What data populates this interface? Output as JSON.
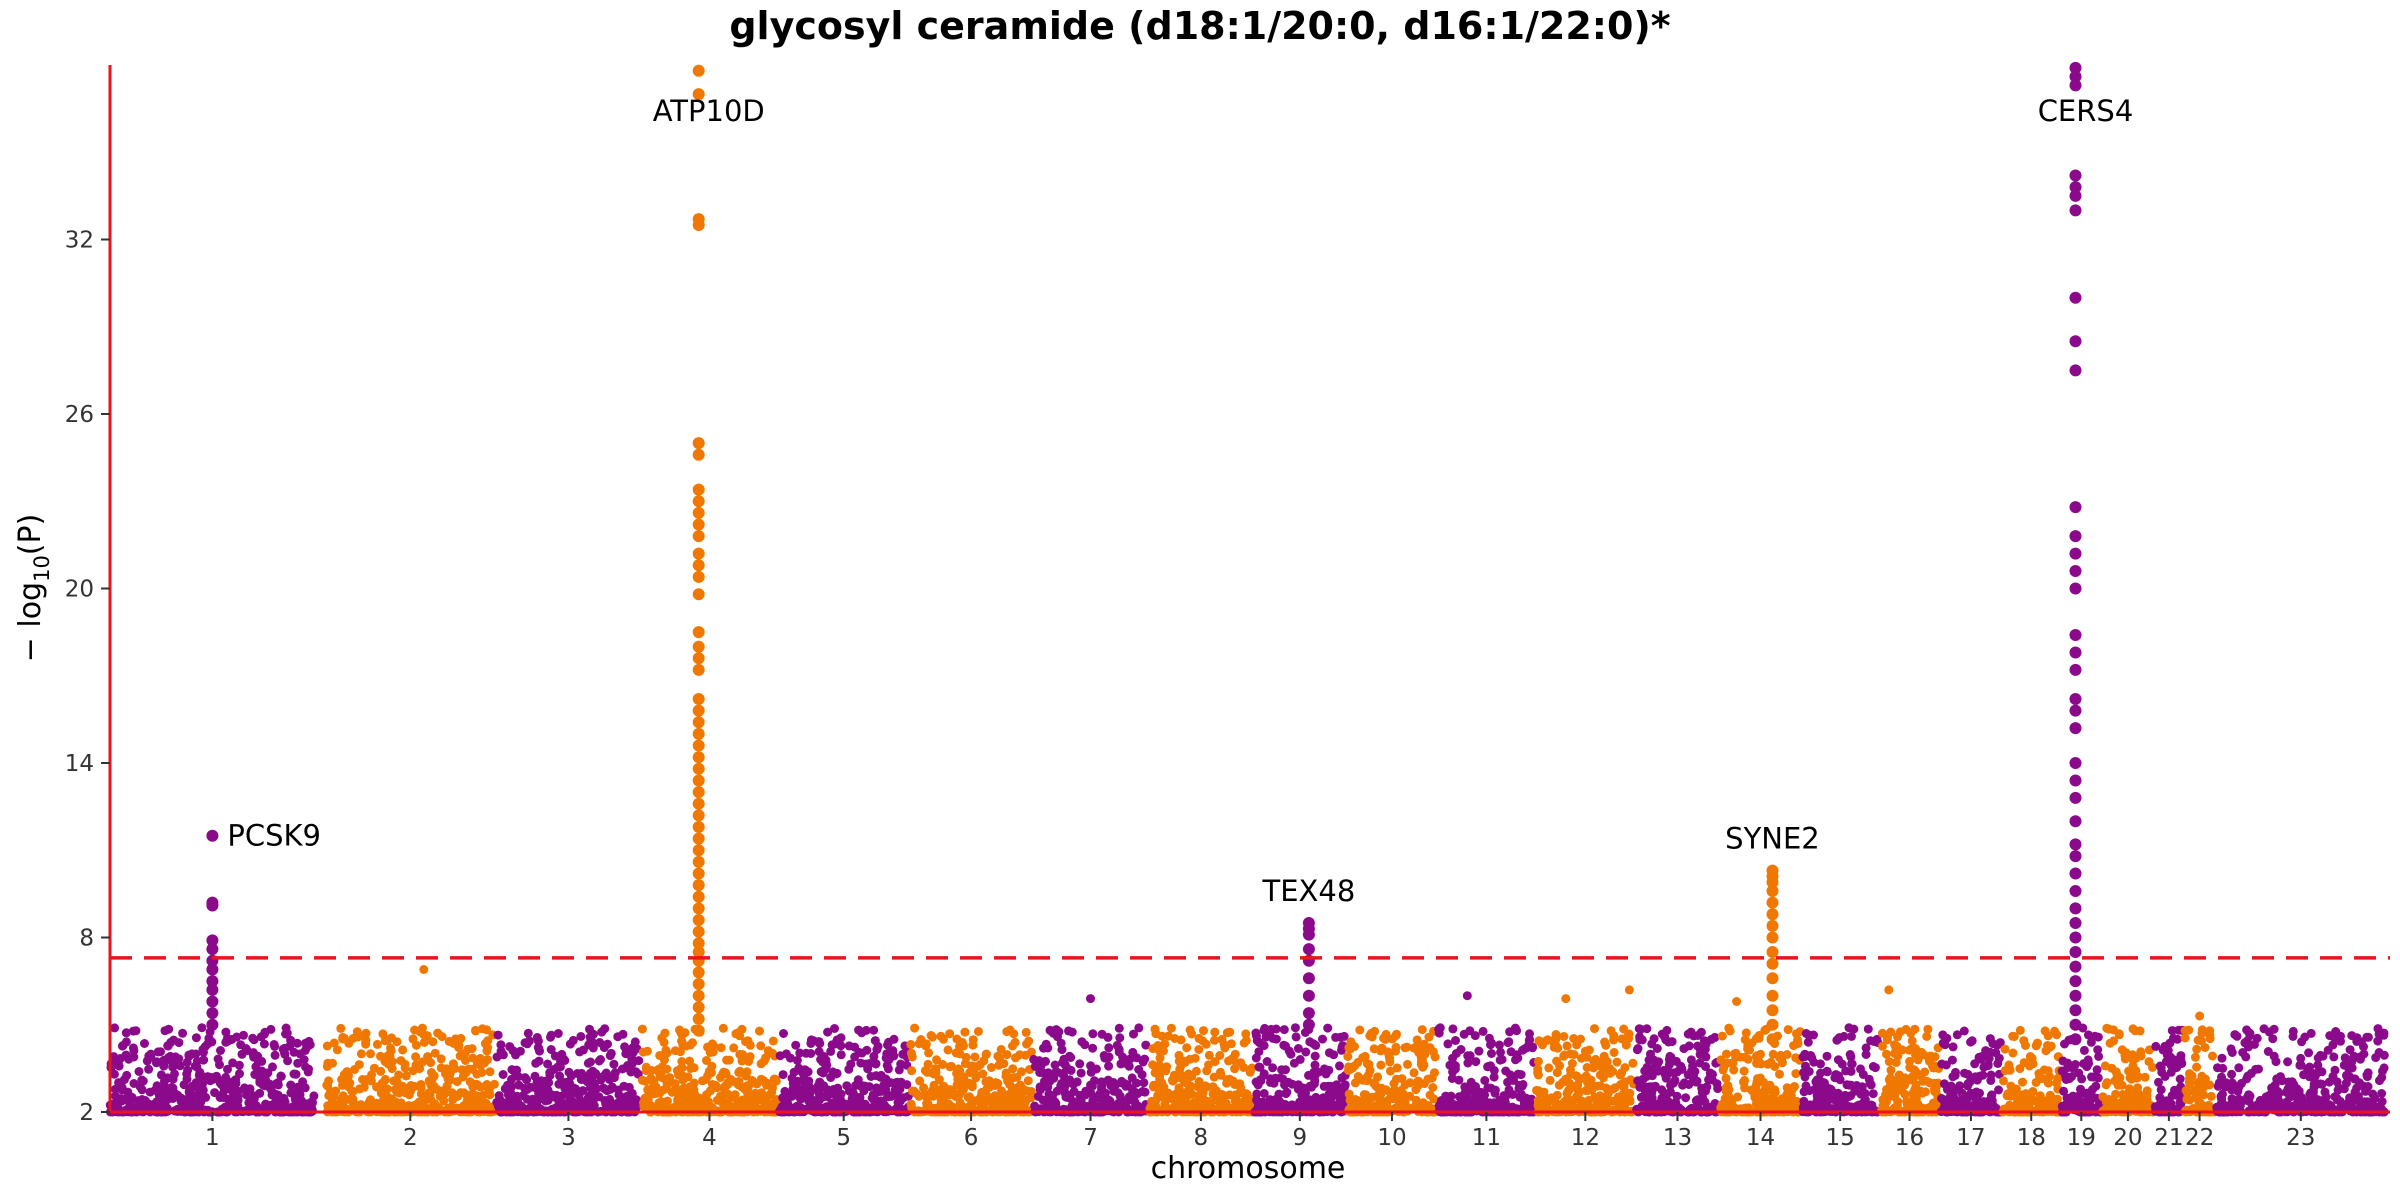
{
  "chart_data": {
    "type": "scatter",
    "title": "glycosyl ceramide (d18:1/20:0, d16:1/22:0)*",
    "xlabel": "chromosome",
    "ylabel": "− log10(P)",
    "ylabel_main": "− log",
    "ylabel_sub": "10",
    "ylabel_tail": "(P)",
    "ylim": [
      2,
      38
    ],
    "yticks": [
      2,
      8,
      14,
      20,
      26,
      32
    ],
    "yticks_text": [
      "2",
      "8",
      "14",
      "20",
      "26",
      "32"
    ],
    "grid": false,
    "significance_threshold": 7.3,
    "colors": {
      "odd_chromosome": "#8B0A8B",
      "even_chromosome": "#F07800",
      "axis": "#E8141E",
      "threshold": "#E8141E"
    },
    "chromosomes": [
      {
        "label": "1",
        "start": 0.0,
        "end": 0.09
      },
      {
        "label": "2",
        "start": 0.095,
        "end": 0.169
      },
      {
        "label": "3",
        "start": 0.17,
        "end": 0.233
      },
      {
        "label": "4",
        "start": 0.234,
        "end": 0.293
      },
      {
        "label": "5",
        "start": 0.294,
        "end": 0.351
      },
      {
        "label": "6",
        "start": 0.352,
        "end": 0.405
      },
      {
        "label": "7",
        "start": 0.406,
        "end": 0.456
      },
      {
        "label": "8",
        "start": 0.457,
        "end": 0.502
      },
      {
        "label": "9",
        "start": 0.503,
        "end": 0.543
      },
      {
        "label": "10",
        "start": 0.544,
        "end": 0.583
      },
      {
        "label": "11",
        "start": 0.584,
        "end": 0.626
      },
      {
        "label": "12",
        "start": 0.627,
        "end": 0.67
      },
      {
        "label": "13",
        "start": 0.671,
        "end": 0.707
      },
      {
        "label": "14",
        "start": 0.708,
        "end": 0.743
      },
      {
        "label": "15",
        "start": 0.744,
        "end": 0.777
      },
      {
        "label": "16",
        "start": 0.778,
        "end": 0.804
      },
      {
        "label": "17",
        "start": 0.805,
        "end": 0.831
      },
      {
        "label": "18",
        "start": 0.832,
        "end": 0.857
      },
      {
        "label": "19",
        "start": 0.858,
        "end": 0.875
      },
      {
        "label": "20",
        "start": 0.876,
        "end": 0.898
      },
      {
        "label": "21",
        "start": 0.899,
        "end": 0.911
      },
      {
        "label": "22",
        "start": 0.912,
        "end": 0.925
      },
      {
        "label": "23",
        "start": 0.926,
        "end": 1.0
      }
    ],
    "peaks": [
      {
        "gene": "PCSK9",
        "chromosome": "1",
        "pos": 0.5,
        "top": 11.5,
        "values": [
          11.5,
          9.2,
          9.1,
          7.9,
          7.6,
          7.2,
          6.9,
          6.5,
          6.2,
          5.8,
          5.4,
          5.0
        ]
      },
      {
        "gene": "ATP10D",
        "chromosome": "4",
        "pos": 0.42,
        "top": 37.8,
        "values": [
          37.8,
          37.0,
          32.7,
          32.5,
          25.0,
          24.6,
          23.4,
          23.0,
          22.6,
          22.2,
          21.8,
          21.2,
          20.8,
          20.4,
          19.8,
          18.5,
          18.0,
          17.6,
          17.2,
          16.2,
          15.8,
          15.4,
          15.0,
          14.6,
          14.2,
          13.8,
          13.4,
          13.0,
          12.6,
          12.2,
          11.8,
          11.4,
          11.0,
          10.6,
          10.2,
          9.8,
          9.4,
          9.0,
          8.6,
          8.2,
          7.8,
          7.5,
          7.2,
          6.8,
          6.4,
          6.0,
          5.6,
          5.2,
          4.8
        ]
      },
      {
        "gene": "TEX48",
        "chromosome": "9",
        "pos": 0.6,
        "top": 8.5,
        "values": [
          8.5,
          8.3,
          8.1,
          7.6,
          7.2,
          6.6,
          6.0,
          5.4,
          5.0
        ]
      },
      {
        "gene": "SYNE2",
        "chromosome": "14",
        "pos": 0.65,
        "top": 10.3,
        "values": [
          10.3,
          10.1,
          9.9,
          9.6,
          9.2,
          8.8,
          8.4,
          8.0,
          7.5,
          7.1,
          6.6,
          6.0,
          5.5,
          5.0,
          4.5
        ]
      },
      {
        "gene": "CERS4",
        "chromosome": "19",
        "pos": 0.35,
        "top": 37.9,
        "values": [
          37.9,
          37.6,
          37.3,
          34.2,
          33.8,
          33.5,
          33.0,
          30.0,
          28.5,
          27.5,
          22.8,
          21.8,
          21.2,
          20.6,
          20.0,
          18.4,
          17.8,
          17.2,
          16.2,
          15.8,
          15.2,
          14.0,
          13.4,
          12.8,
          12.0,
          11.2,
          10.8,
          10.2,
          9.6,
          9.0,
          8.5,
          8.0,
          7.5,
          7.0,
          6.5,
          6.0,
          5.5,
          5.0,
          4.5
        ]
      }
    ],
    "extra_points": [
      {
        "chromosome": "2",
        "pos": 0.58,
        "value": 6.9
      },
      {
        "chromosome": "7",
        "pos": 0.5,
        "value": 5.9
      },
      {
        "chromosome": "11",
        "pos": 0.3,
        "value": 6.0
      },
      {
        "chromosome": "12",
        "pos": 0.3,
        "value": 5.9
      },
      {
        "chromosome": "12",
        "pos": 0.95,
        "value": 6.2
      },
      {
        "chromosome": "14",
        "pos": 0.2,
        "value": 5.8
      },
      {
        "chromosome": "16",
        "pos": 0.15,
        "value": 6.2
      },
      {
        "chromosome": "22",
        "pos": 0.5,
        "value": 5.3
      }
    ]
  }
}
